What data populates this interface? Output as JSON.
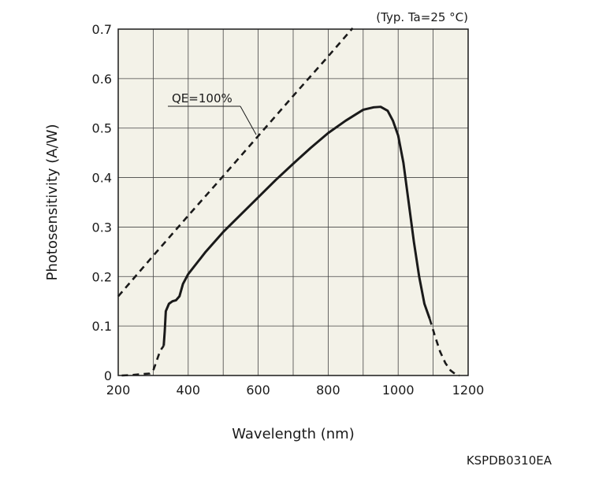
{
  "chart_data": {
    "type": "line",
    "title": "",
    "condition_note": "(Typ. Ta=25 °C)",
    "xlabel": "Wavelength (nm)",
    "ylabel": "Photosensitivity (A/W)",
    "xlim": [
      200,
      1200
    ],
    "ylim": [
      0,
      0.7
    ],
    "x_ticks": [
      "200",
      "400",
      "600",
      "800",
      "1000",
      "1200"
    ],
    "y_ticks": [
      "0",
      "0.1",
      "0.2",
      "0.3",
      "0.4",
      "0.5",
      "0.6",
      "0.7"
    ],
    "grid": true,
    "background": "#f3f2e8",
    "line_color": "#1a1a1a",
    "annotation": "QE=100%",
    "series": [
      {
        "style": "dashed",
        "points": [
          [
            200,
            0.16
          ],
          [
            300,
            0.242
          ],
          [
            400,
            0.323
          ],
          [
            500,
            0.403
          ],
          [
            600,
            0.484
          ],
          [
            700,
            0.565
          ],
          [
            800,
            0.645
          ],
          [
            870,
            0.702
          ]
        ]
      },
      {
        "style": "dashed",
        "points": [
          [
            210,
            0.0
          ],
          [
            240,
            0.001
          ],
          [
            270,
            0.003
          ],
          [
            290,
            0.004
          ],
          [
            300,
            0.01
          ],
          [
            310,
            0.03
          ],
          [
            320,
            0.05
          ],
          [
            330,
            0.06
          ]
        ]
      },
      {
        "style": "solid",
        "points": [
          [
            330,
            0.06
          ],
          [
            333,
            0.09
          ],
          [
            336,
            0.13
          ],
          [
            345,
            0.145
          ],
          [
            355,
            0.15
          ],
          [
            365,
            0.152
          ],
          [
            375,
            0.16
          ],
          [
            385,
            0.185
          ],
          [
            400,
            0.205
          ],
          [
            450,
            0.25
          ],
          [
            500,
            0.29
          ],
          [
            550,
            0.325
          ],
          [
            600,
            0.36
          ],
          [
            650,
            0.395
          ],
          [
            700,
            0.428
          ],
          [
            750,
            0.46
          ],
          [
            800,
            0.49
          ],
          [
            850,
            0.515
          ],
          [
            900,
            0.537
          ],
          [
            930,
            0.542
          ],
          [
            950,
            0.543
          ],
          [
            970,
            0.535
          ],
          [
            985,
            0.515
          ],
          [
            1000,
            0.485
          ],
          [
            1015,
            0.43
          ],
          [
            1030,
            0.35
          ],
          [
            1045,
            0.27
          ],
          [
            1060,
            0.2
          ],
          [
            1075,
            0.145
          ],
          [
            1090,
            0.115
          ]
        ]
      },
      {
        "style": "dashed",
        "points": [
          [
            1090,
            0.115
          ],
          [
            1105,
            0.08
          ],
          [
            1120,
            0.048
          ],
          [
            1135,
            0.025
          ],
          [
            1150,
            0.01
          ],
          [
            1165,
            0.002
          ],
          [
            1175,
            0.0
          ]
        ]
      }
    ]
  },
  "figure_code": "KSPDB0310EA"
}
